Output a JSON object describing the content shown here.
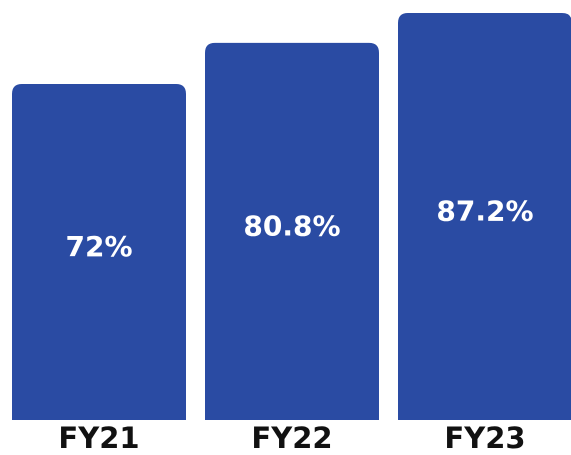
{
  "chart_data": {
    "type": "bar",
    "categories": [
      "FY21",
      "FY22",
      "FY23"
    ],
    "values": [
      72,
      80.8,
      87.2
    ],
    "value_labels": [
      "72%",
      "80.8%",
      "87.2%"
    ],
    "color": "#2a4ba3"
  }
}
